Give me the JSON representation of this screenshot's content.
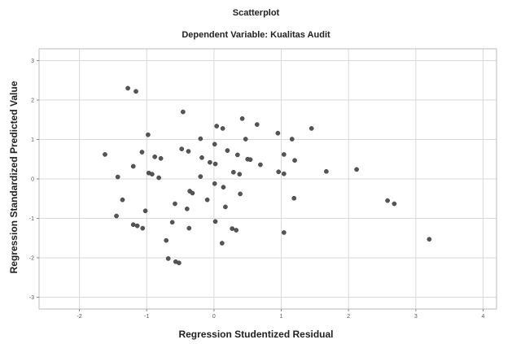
{
  "chart_data": {
    "type": "scatter",
    "title": "Scatterplot",
    "subtitle": "Dependent Variable: Kualitas Audit",
    "xlabel": "Regression Studentized Residual",
    "ylabel": "Regression Standardized Predicted Value",
    "xlim": [
      -2.6,
      4.2
    ],
    "ylim": [
      -3.3,
      3.3
    ],
    "xticks": [
      "-2",
      "-1",
      "0",
      "1",
      "2",
      "3",
      "4"
    ],
    "yticks": [
      "-3",
      "-2",
      "-1",
      "0",
      "1",
      "2",
      "3"
    ],
    "grid": true,
    "marker_color": "#555555",
    "points": [
      {
        "x": -1.28,
        "y": 2.3
      },
      {
        "x": -1.16,
        "y": 2.22
      },
      {
        "x": -0.46,
        "y": 1.7
      },
      {
        "x": 0.42,
        "y": 1.53
      },
      {
        "x": 0.64,
        "y": 1.38
      },
      {
        "x": 0.04,
        "y": 1.34
      },
      {
        "x": 0.13,
        "y": 1.28
      },
      {
        "x": 1.45,
        "y": 1.28
      },
      {
        "x": 0.95,
        "y": 1.16
      },
      {
        "x": -0.98,
        "y": 1.12
      },
      {
        "x": -0.2,
        "y": 1.02
      },
      {
        "x": 0.47,
        "y": 1.01
      },
      {
        "x": 1.16,
        "y": 1.01
      },
      {
        "x": 0.01,
        "y": 0.88
      },
      {
        "x": -0.48,
        "y": 0.76
      },
      {
        "x": -0.38,
        "y": 0.7
      },
      {
        "x": -1.07,
        "y": 0.68
      },
      {
        "x": 0.2,
        "y": 0.72
      },
      {
        "x": 0.35,
        "y": 0.61
      },
      {
        "x": -1.62,
        "y": 0.62
      },
      {
        "x": 1.04,
        "y": 0.62
      },
      {
        "x": -0.88,
        "y": 0.56
      },
      {
        "x": -0.79,
        "y": 0.52
      },
      {
        "x": -0.18,
        "y": 0.54
      },
      {
        "x": 0.5,
        "y": 0.5
      },
      {
        "x": 0.54,
        "y": 0.49
      },
      {
        "x": 1.2,
        "y": 0.47
      },
      {
        "x": -0.06,
        "y": 0.42
      },
      {
        "x": 0.02,
        "y": 0.38
      },
      {
        "x": 0.69,
        "y": 0.36
      },
      {
        "x": -1.2,
        "y": 0.32
      },
      {
        "x": 1.67,
        "y": 0.19
      },
      {
        "x": 2.12,
        "y": 0.24
      },
      {
        "x": 0.96,
        "y": 0.18
      },
      {
        "x": 1.04,
        "y": 0.13
      },
      {
        "x": 0.29,
        "y": 0.17
      },
      {
        "x": 0.38,
        "y": 0.12
      },
      {
        "x": -0.97,
        "y": 0.15
      },
      {
        "x": -0.92,
        "y": 0.12
      },
      {
        "x": -1.43,
        "y": 0.05
      },
      {
        "x": -0.82,
        "y": 0.03
      },
      {
        "x": -0.2,
        "y": 0.06
      },
      {
        "x": 0.01,
        "y": -0.12
      },
      {
        "x": 0.14,
        "y": -0.21
      },
      {
        "x": 0.39,
        "y": -0.38
      },
      {
        "x": -0.36,
        "y": -0.31
      },
      {
        "x": -0.32,
        "y": -0.36
      },
      {
        "x": -0.1,
        "y": -0.53
      },
      {
        "x": -1.36,
        "y": -0.53
      },
      {
        "x": -0.58,
        "y": -0.63
      },
      {
        "x": 0.17,
        "y": -0.71
      },
      {
        "x": -0.4,
        "y": -0.76
      },
      {
        "x": -1.02,
        "y": -0.81
      },
      {
        "x": 1.19,
        "y": -0.49
      },
      {
        "x": 2.58,
        "y": -0.55
      },
      {
        "x": 2.68,
        "y": -0.63
      },
      {
        "x": -1.45,
        "y": -0.94
      },
      {
        "x": 0.02,
        "y": -1.08
      },
      {
        "x": -0.62,
        "y": -1.1
      },
      {
        "x": -1.2,
        "y": -1.16
      },
      {
        "x": -1.14,
        "y": -1.19
      },
      {
        "x": -1.06,
        "y": -1.25
      },
      {
        "x": -0.37,
        "y": -1.25
      },
      {
        "x": 0.27,
        "y": -1.26
      },
      {
        "x": 0.33,
        "y": -1.3
      },
      {
        "x": 1.04,
        "y": -1.36
      },
      {
        "x": -0.71,
        "y": -1.56
      },
      {
        "x": 0.12,
        "y": -1.63
      },
      {
        "x": 3.2,
        "y": -1.53
      },
      {
        "x": -0.68,
        "y": -2.02
      },
      {
        "x": -0.57,
        "y": -2.1
      },
      {
        "x": -0.52,
        "y": -2.13
      }
    ]
  }
}
